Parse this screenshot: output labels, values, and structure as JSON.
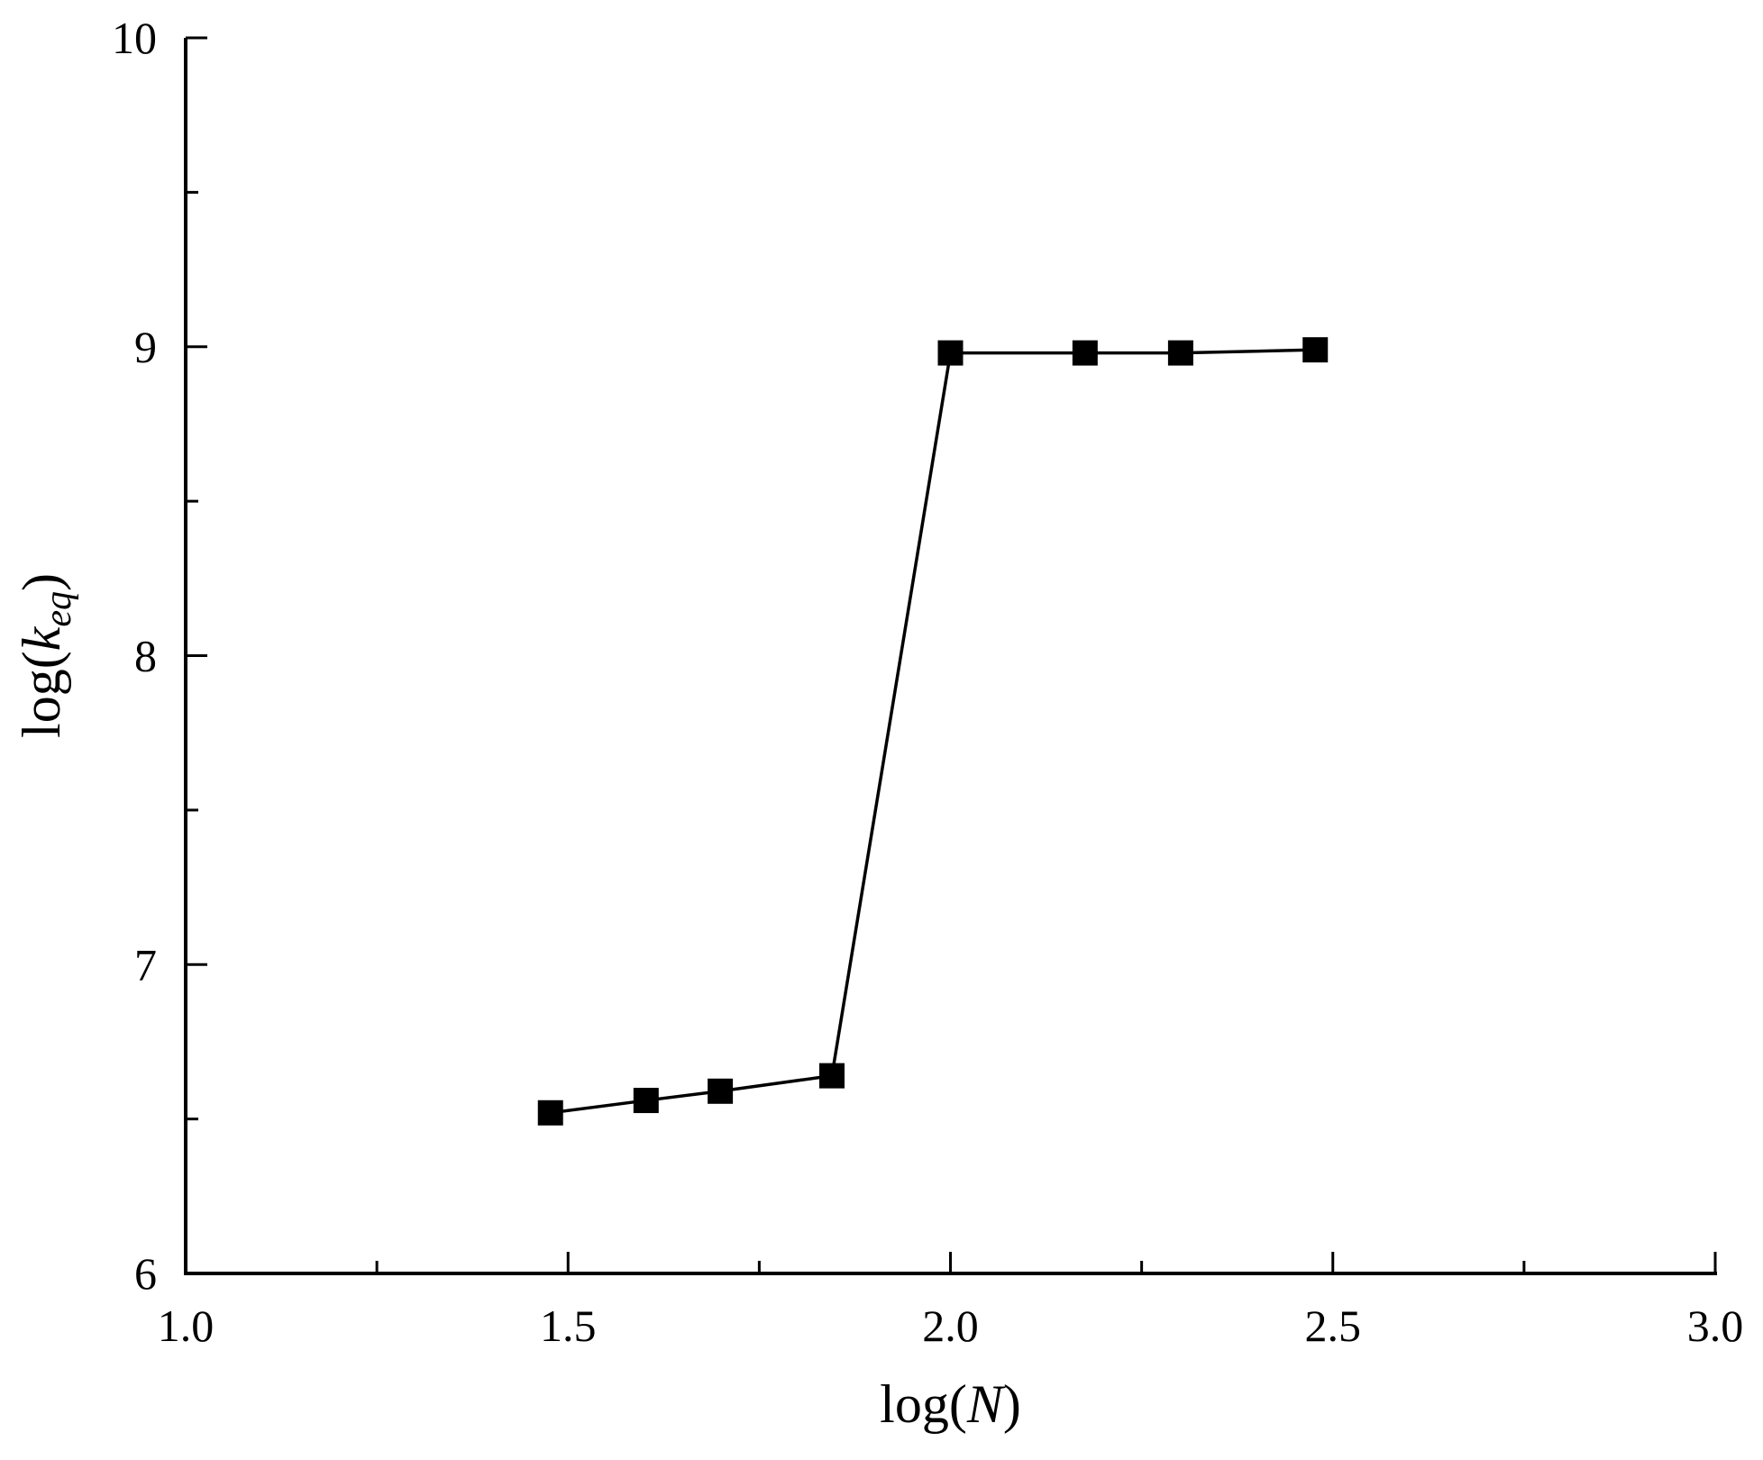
{
  "chart_data": {
    "type": "line",
    "title": "",
    "xlabel": {
      "prefix": "log(",
      "variable": "N",
      "suffix": ")"
    },
    "ylabel": {
      "prefix": "log(",
      "variable": "k",
      "subscript": "eq",
      "suffix": ")"
    },
    "xlim": [
      1.0,
      3.0
    ],
    "ylim": [
      6,
      10
    ],
    "x_ticks": [
      1.0,
      1.5,
      2.0,
      2.5,
      3.0
    ],
    "x_tick_labels": [
      "1.0",
      "1.5",
      "2.0",
      "2.5",
      "3.0"
    ],
    "x_minor_ticks": [
      1.25,
      1.75,
      2.25,
      2.75
    ],
    "y_ticks": [
      6,
      7,
      8,
      9,
      10
    ],
    "y_tick_labels": [
      "6",
      "7",
      "8",
      "9",
      "10"
    ],
    "y_minor_ticks": [
      6.5,
      7.5,
      8.5,
      9.5
    ],
    "grid": false,
    "marker": "square",
    "color": "#000000",
    "series": [
      {
        "x": [
          1.477,
          1.602,
          1.699,
          1.845,
          2.0,
          2.176,
          2.301,
          2.477
        ],
        "y": [
          6.52,
          6.56,
          6.59,
          6.64,
          8.98,
          8.98,
          8.98,
          8.99
        ]
      }
    ]
  }
}
